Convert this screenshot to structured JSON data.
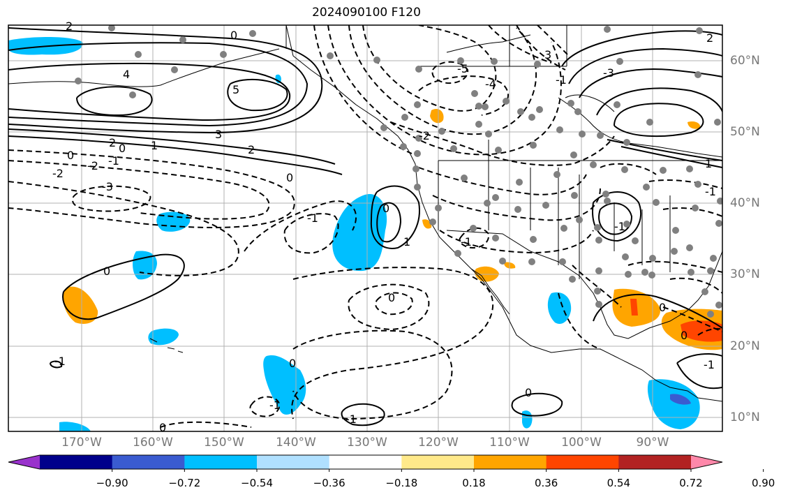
{
  "title": "2024090100 F120",
  "lon_labels": [
    "170°W",
    "160°W",
    "150°W",
    "140°W",
    "130°W",
    "120°W",
    "110°W",
    "100°W",
    "90°W"
  ],
  "lat_labels": [
    "60°N",
    "50°N",
    "40°N",
    "30°N",
    "20°N",
    "10°N"
  ],
  "colorbar": {
    "ticks": [
      "−0.90",
      "−0.72",
      "−0.54",
      "−0.36",
      "−0.18",
      "0.18",
      "0.36",
      "0.54",
      "0.72",
      "0.90"
    ],
    "colors": [
      "#9932cc",
      "#00008b",
      "#3a5bd0",
      "#00bfff",
      "#b0e0ff",
      "#ffffff",
      "#ffe98a",
      "#ffa500",
      "#ff4500",
      "#b22222",
      "#ff88aa"
    ]
  },
  "contour_labels": [
    "2",
    "0",
    "4",
    "5",
    "3",
    "2",
    "0",
    "1",
    "2",
    "3",
    "2",
    "-2",
    "-1",
    "0",
    "-2",
    "-3",
    "-1",
    "0",
    "-5",
    "-4",
    "-3",
    "-2",
    "-1",
    "0",
    "1",
    "-1",
    "0",
    "-1",
    "0",
    "-1",
    "-1",
    "0",
    "-1",
    "0",
    "0",
    "1",
    "-1",
    "0",
    "0",
    "-1"
  ],
  "colors": {
    "gray_dot": "#808080",
    "grid": "#b0b0b0"
  }
}
